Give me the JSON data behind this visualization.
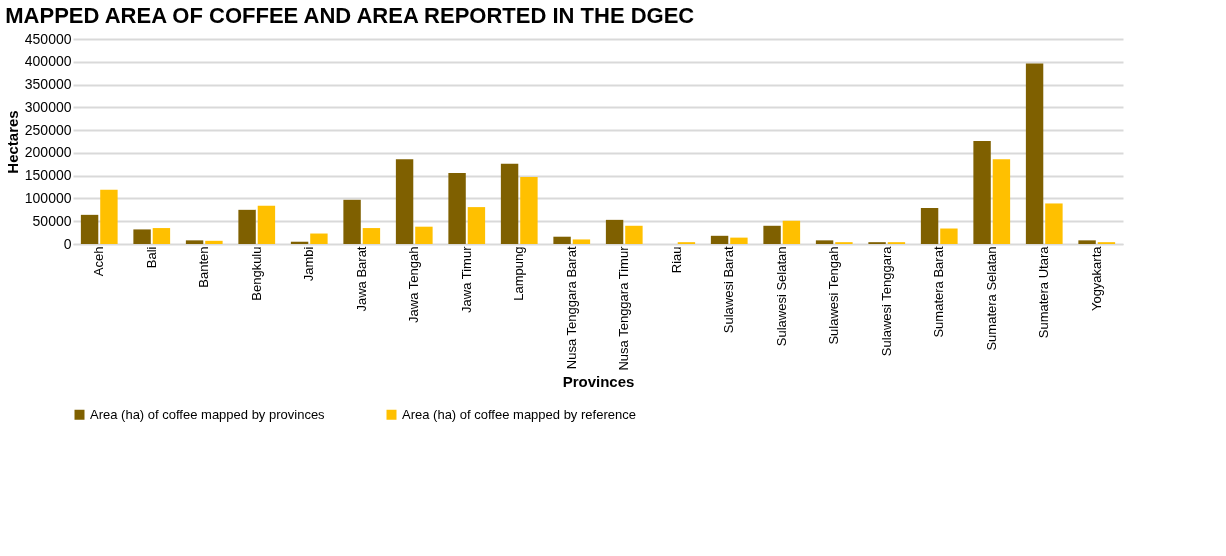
{
  "chart_data": {
    "type": "bar",
    "title": "MAPPED AREA OF COFFEE AND AREA REPORTED IN THE DGEC",
    "xlabel": "Provinces",
    "ylabel": "Hectares",
    "categories": [
      "Aceh",
      "Bali",
      "Banten",
      "Bengkulu",
      "Jambi",
      "Jawa Barat",
      "Jawa Tengah",
      "Jawa Timur",
      "Lampung",
      "Nusa Tenggara Barat",
      "Nusa Tenggara Timur",
      "Riau",
      "Sulawesi Barat",
      "Sulawesi Selatan",
      "Sulawesi Tengah",
      "Sulawesi Tenggara",
      "Sumatera Barat",
      "Sumatera Selatan",
      "Sumatera Utara",
      "Yogyakarta"
    ],
    "series": [
      {
        "name": "Area (ha) of coffee mapped by provinces",
        "color": "#7f6000",
        "values": [
          64000,
          32000,
          8000,
          75000,
          5000,
          97000,
          186000,
          156000,
          176000,
          16000,
          53000,
          null,
          18000,
          40000,
          8000,
          4000,
          79000,
          226000,
          396000,
          8000
        ]
      },
      {
        "name": "Area (ha) of coffee mapped by reference",
        "color": "#ffc000",
        "values": [
          119000,
          35000,
          7000,
          84000,
          23000,
          35000,
          38000,
          81000,
          147000,
          10000,
          40000,
          4000,
          14000,
          51000,
          4000,
          4000,
          34000,
          186000,
          89000,
          4000
        ]
      }
    ],
    "ylim": [
      0,
      450000
    ],
    "yticks": [
      0,
      50000,
      100000,
      150000,
      200000,
      250000,
      300000,
      350000,
      400000,
      450000
    ],
    "grid": "y",
    "legend": "bottom"
  }
}
